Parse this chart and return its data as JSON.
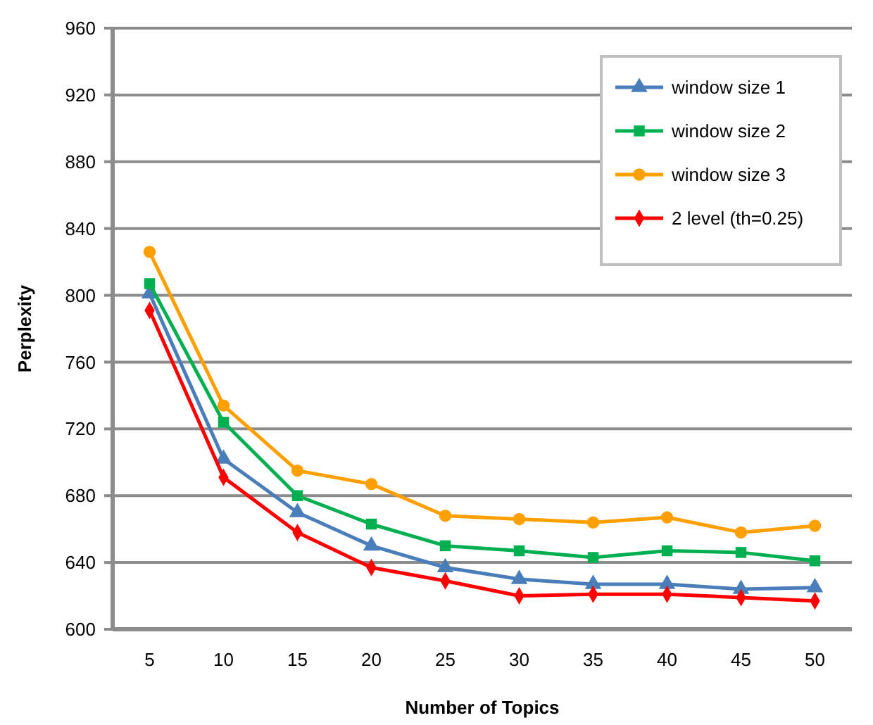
{
  "chart_data": {
    "type": "line",
    "xlabel": "Number of Topics",
    "ylabel": "Perplexity",
    "categories": [
      "5",
      "10",
      "15",
      "20",
      "25",
      "30",
      "35",
      "40",
      "45",
      "50"
    ],
    "series": [
      {
        "name": "window size 1",
        "color": "#4a7ebb",
        "marker": "triangle",
        "values": [
          801,
          702,
          670,
          650,
          637,
          630,
          627,
          627,
          624,
          625
        ]
      },
      {
        "name": "window size 2",
        "color": "#00b050",
        "marker": "square",
        "values": [
          807,
          724,
          680,
          663,
          650,
          647,
          643,
          647,
          646,
          641
        ]
      },
      {
        "name": "window size 3",
        "color": "#ffa000",
        "marker": "circle",
        "values": [
          826,
          734,
          695,
          687,
          668,
          666,
          664,
          667,
          658,
          662
        ]
      },
      {
        "name": "2 level (th=0.25)",
        "color": "#ff0000",
        "marker": "diamond",
        "values": [
          791,
          691,
          658,
          637,
          629,
          620,
          621,
          621,
          619,
          617
        ]
      }
    ],
    "ylim": [
      600,
      960
    ],
    "yticks": [
      600,
      640,
      680,
      720,
      760,
      800,
      840,
      880,
      920,
      960
    ],
    "grid": "y",
    "legend": "top right"
  }
}
